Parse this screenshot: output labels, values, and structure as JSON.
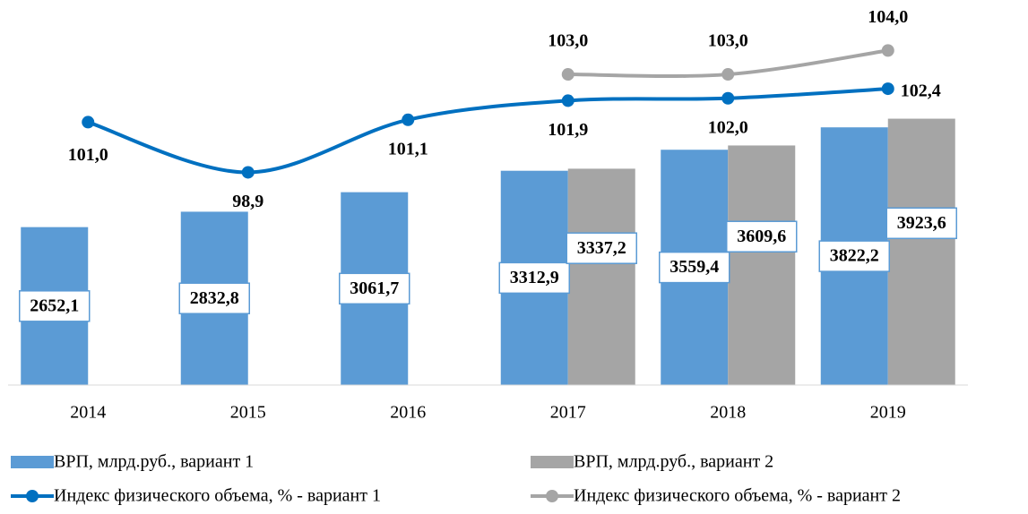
{
  "chart_data": {
    "type": "bar_line",
    "categories": [
      "2014",
      "2015",
      "2016",
      "2017",
      "2018",
      "2019"
    ],
    "series": [
      {
        "name": "ВРП, млрд.руб., вариант 1",
        "type": "bar",
        "color": "#5b9bd5",
        "values": [
          2652.1,
          2832.8,
          3061.7,
          3312.9,
          3559.4,
          3822.2
        ],
        "value_labels": [
          "2652,1",
          "2832,8",
          "3061,7",
          "3312,9",
          "3559,4",
          "3822,2"
        ]
      },
      {
        "name": "ВРП, млрд.руб., вариант 2",
        "type": "bar",
        "color": "#a5a5a5",
        "values": [
          null,
          null,
          null,
          3337.2,
          3609.6,
          3923.6
        ],
        "value_labels": [
          null,
          null,
          null,
          "3337,2",
          "3609,6",
          "3923,6"
        ]
      },
      {
        "name": "Индекс физического объема, % - вариант 1",
        "type": "line",
        "axis": "y2",
        "color": "#0070c0",
        "values": [
          101.0,
          98.9,
          101.1,
          101.9,
          102.0,
          102.4
        ],
        "value_labels": [
          "101,0",
          "98,9",
          "101,1",
          "101,9",
          "102,0",
          "102,4"
        ]
      },
      {
        "name": "Индекс физического объема, % - вариант 2",
        "type": "line",
        "axis": "y2",
        "color": "#a5a5a5",
        "values": [
          null,
          null,
          null,
          103.0,
          103.0,
          104.0
        ],
        "value_labels": [
          null,
          null,
          null,
          "103,0",
          "103,0",
          "104,0"
        ]
      }
    ],
    "ylim": [
      800,
      5200
    ],
    "y2lim": [
      90,
      105.7
    ]
  }
}
